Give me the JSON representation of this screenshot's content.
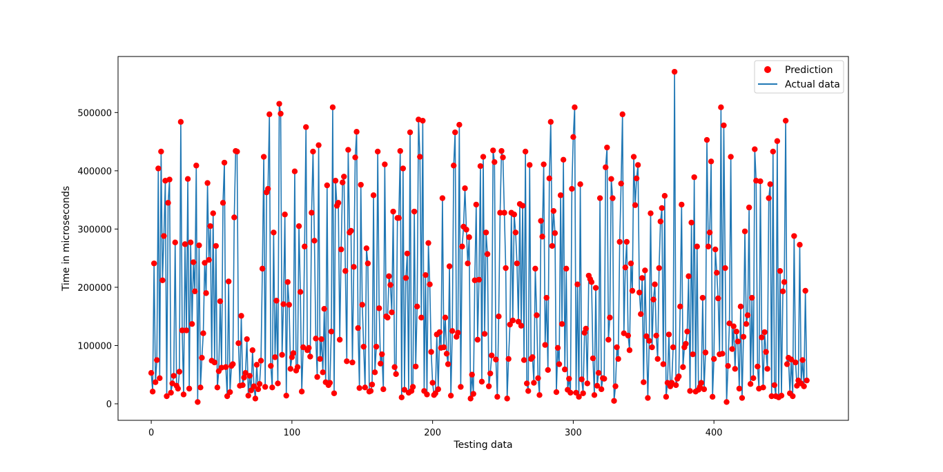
{
  "chart_data": {
    "type": "scatter",
    "title": "",
    "xlabel": "Testing data",
    "ylabel": "Time in microseconds",
    "xlim": [
      -23.6,
      495.6
    ],
    "ylim": [
      -28400,
      596200
    ],
    "xticks": [
      0,
      100,
      200,
      300,
      400
    ],
    "yticks": [
      0,
      100000,
      200000,
      300000,
      400000,
      500000
    ],
    "xtick_labels": [
      "0",
      "100",
      "200",
      "300",
      "400"
    ],
    "ytick_labels": [
      "0",
      "100000",
      "200000",
      "300000",
      "400000",
      "500000"
    ],
    "grid": false,
    "legend_position": "top-right",
    "series": [
      {
        "name": "Prediction",
        "kind": "scatter",
        "color": "#ff0000"
      },
      {
        "name": "Actual data",
        "kind": "line",
        "color": "#1f77b4"
      }
    ],
    "x_start": 0,
    "values": [
      53000,
      21000,
      241000,
      37000,
      75000,
      404000,
      44000,
      433000,
      212000,
      288000,
      383000,
      13000,
      345000,
      385000,
      19000,
      35000,
      48000,
      277000,
      31000,
      26000,
      55000,
      484000,
      126000,
      16000,
      274000,
      126000,
      386000,
      26000,
      277000,
      137000,
      243000,
      193000,
      409000,
      3000,
      272000,
      28000,
      79000,
      121000,
      242000,
      190000,
      379000,
      247000,
      305000,
      74000,
      327000,
      71000,
      271000,
      28000,
      56000,
      176000,
      62000,
      345000,
      414000,
      63000,
      13000,
      210000,
      20000,
      65000,
      68000,
      320000,
      434000,
      433000,
      104000,
      31000,
      151000,
      32000,
      45000,
      53000,
      111000,
      14000,
      48000,
      23000,
      92000,
      30000,
      9000,
      67000,
      25000,
      34000,
      74000,
      232000,
      424000,
      29000,
      363000,
      369000,
      497000,
      65000,
      28000,
      294000,
      80000,
      177000,
      35000,
      515000,
      498000,
      84000,
      171000,
      325000,
      14000,
      209000,
      170000,
      60000,
      80000,
      87000,
      399000,
      57000,
      63000,
      305000,
      192000,
      21000,
      97000,
      270000,
      475000,
      92000,
      96000,
      81000,
      328000,
      433000,
      280000,
      112000,
      46000,
      444000,
      77000,
      111000,
      54000,
      163000,
      37000,
      375000,
      32000,
      36000,
      124000,
      509000,
      18000,
      383000,
      340000,
      345000,
      110000,
      265000,
      380000,
      390000,
      228000,
      73000,
      436000,
      294000,
      297000,
      71000,
      235000,
      423000,
      467000,
      130000,
      27000,
      376000,
      170000,
      98000,
      28000,
      267000,
      241000,
      21000,
      22000,
      33000,
      358000,
      54000,
      98000,
      433000,
      164000,
      69000,
      85000,
      25000,
      411000,
      150000,
      148000,
      219000,
      204000,
      157000,
      330000,
      63000,
      51000,
      319000,
      319000,
      434000,
      11000,
      404000,
      24000,
      216000,
      258000,
      19000,
      466000,
      22000,
      29000,
      330000,
      64000,
      167000,
      488000,
      424000,
      148000,
      486000,
      22000,
      221000,
      16000,
      276000,
      205000,
      89000,
      36000,
      15000,
      18000,
      119000,
      25000,
      123000,
      96000,
      353000,
      97000,
      148000,
      86000,
      68000,
      236000,
      14000,
      125000,
      409000,
      466000,
      115000,
      122000,
      479000,
      29000,
      270000,
      304000,
      370000,
      299000,
      241000,
      286000,
      9000,
      50000,
      17000,
      212000,
      342000,
      110000,
      213000,
      408000,
      38000,
      424000,
      120000,
      294000,
      257000,
      30000,
      52000,
      83000,
      435000,
      415000,
      76000,
      12000,
      150000,
      328000,
      434000,
      423000,
      328000,
      233000,
      9000,
      77000,
      136000,
      328000,
      143000,
      325000,
      294000,
      241000,
      141000,
      343000,
      134000,
      340000,
      75000,
      433000,
      35000,
      22000,
      410000,
      77000,
      80000,
      36000,
      232000,
      152000,
      44000,
      15000,
      314000,
      287000,
      411000,
      101000,
      182000,
      58000,
      387000,
      484000,
      271000,
      331000,
      293000,
      20000,
      96000,
      68000,
      358000,
      137000,
      419000,
      59000,
      232000,
      24000,
      43000,
      19000,
      369000,
      458000,
      509000,
      19000,
      205000,
      12000,
      377000,
      42000,
      18000,
      122000,
      129000,
      35000,
      220000,
      214000,
      209000,
      78000,
      15000,
      199000,
      31000,
      53000,
      353000,
      25000,
      44000,
      43000,
      406000,
      440000,
      110000,
      148000,
      386000,
      353000,
      5000,
      30000,
      97000,
      77000,
      278000,
      378000,
      497000,
      121000,
      234000,
      278000,
      117000,
      92000,
      241000,
      194000,
      424000,
      341000,
      387000,
      410000,
      191000,
      154000,
      216000,
      37000,
      229000,
      116000,
      10000,
      108000,
      327000,
      97000,
      179000,
      205000,
      117000,
      77000,
      233000,
      313000,
      336000,
      68000,
      357000,
      12000,
      36000,
      119000,
      30000,
      36000,
      97000,
      570000,
      32000,
      43000,
      47000,
      167000,
      342000,
      63000,
      97000,
      103000,
      124000,
      219000,
      22000,
      311000,
      85000,
      389000,
      21000,
      270000,
      24000,
      29000,
      36000,
      182000,
      25000,
      88000,
      453000,
      270000,
      294000,
      416000,
      12000,
      77000,
      265000,
      225000,
      181000,
      85000,
      509000,
      86000,
      478000,
      233000,
      3000,
      65000,
      138000,
      424000,
      94000,
      133000,
      60000,
      124000,
      107000,
      26000,
      167000,
      10000,
      115000,
      296000,
      137000,
      152000,
      337000,
      34000,
      182000,
      44000,
      437000,
      383000,
      64000,
      26000,
      382000,
      114000,
      28000,
      123000,
      89000,
      60000,
      353000,
      377000,
      13000,
      433000,
      32000,
      13000,
      451000,
      11000,
      228000,
      14000,
      193000,
      209000,
      486000,
      68000,
      79000,
      18000,
      76000,
      13000,
      288000,
      71000,
      31000,
      40000,
      273000,
      35000,
      75000,
      30000,
      194000,
      40000
    ]
  }
}
